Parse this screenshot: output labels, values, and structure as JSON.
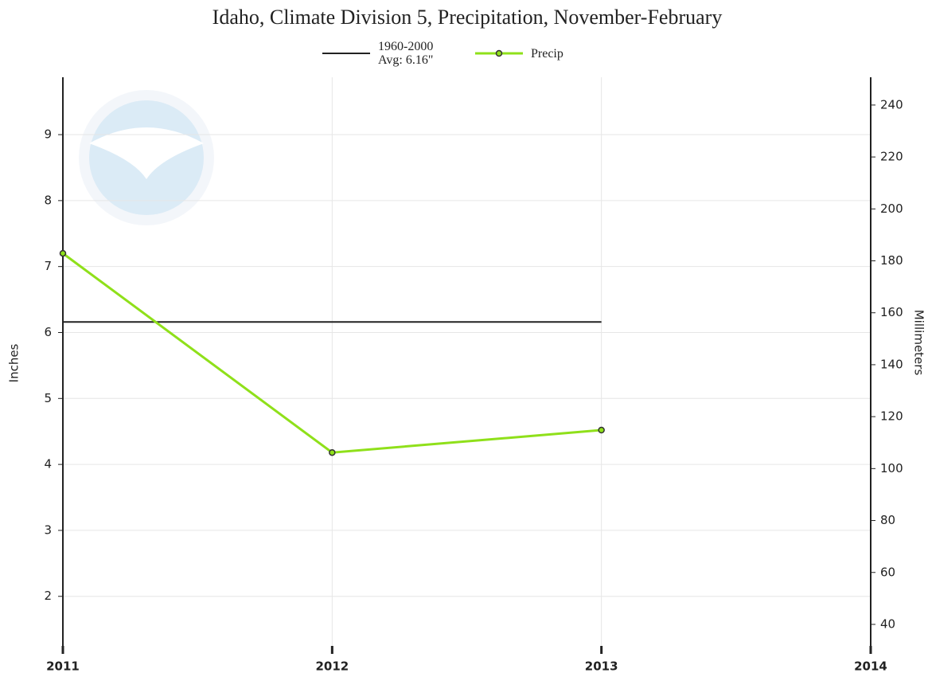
{
  "chart_data": {
    "type": "line",
    "title": "Idaho, Climate Division 5, Precipitation, November-February",
    "ylabel": "Inches",
    "y2label": "Millimeters",
    "x": [
      2011,
      2012,
      2013
    ],
    "series": [
      {
        "name": "1960-2000\nAvg: 6.16\"",
        "color": "#222222",
        "values": [
          6.16,
          6.16,
          6.16
        ],
        "marker": false
      },
      {
        "name": "Precip",
        "color": "#8fe01a",
        "values": [
          7.2,
          4.18,
          4.52
        ],
        "marker": true
      }
    ],
    "xlim": [
      2011,
      2014
    ],
    "xticks": [
      2011,
      2012,
      2013,
      2014
    ],
    "ylim": [
      1.2,
      9.87
    ],
    "yticks": [
      2,
      3,
      4,
      5,
      6,
      7,
      8,
      9
    ],
    "y2lim": [
      30.48,
      250.7
    ],
    "y2ticks": [
      40,
      60,
      80,
      100,
      120,
      140,
      160,
      180,
      200,
      220,
      240
    ],
    "grid": true
  }
}
